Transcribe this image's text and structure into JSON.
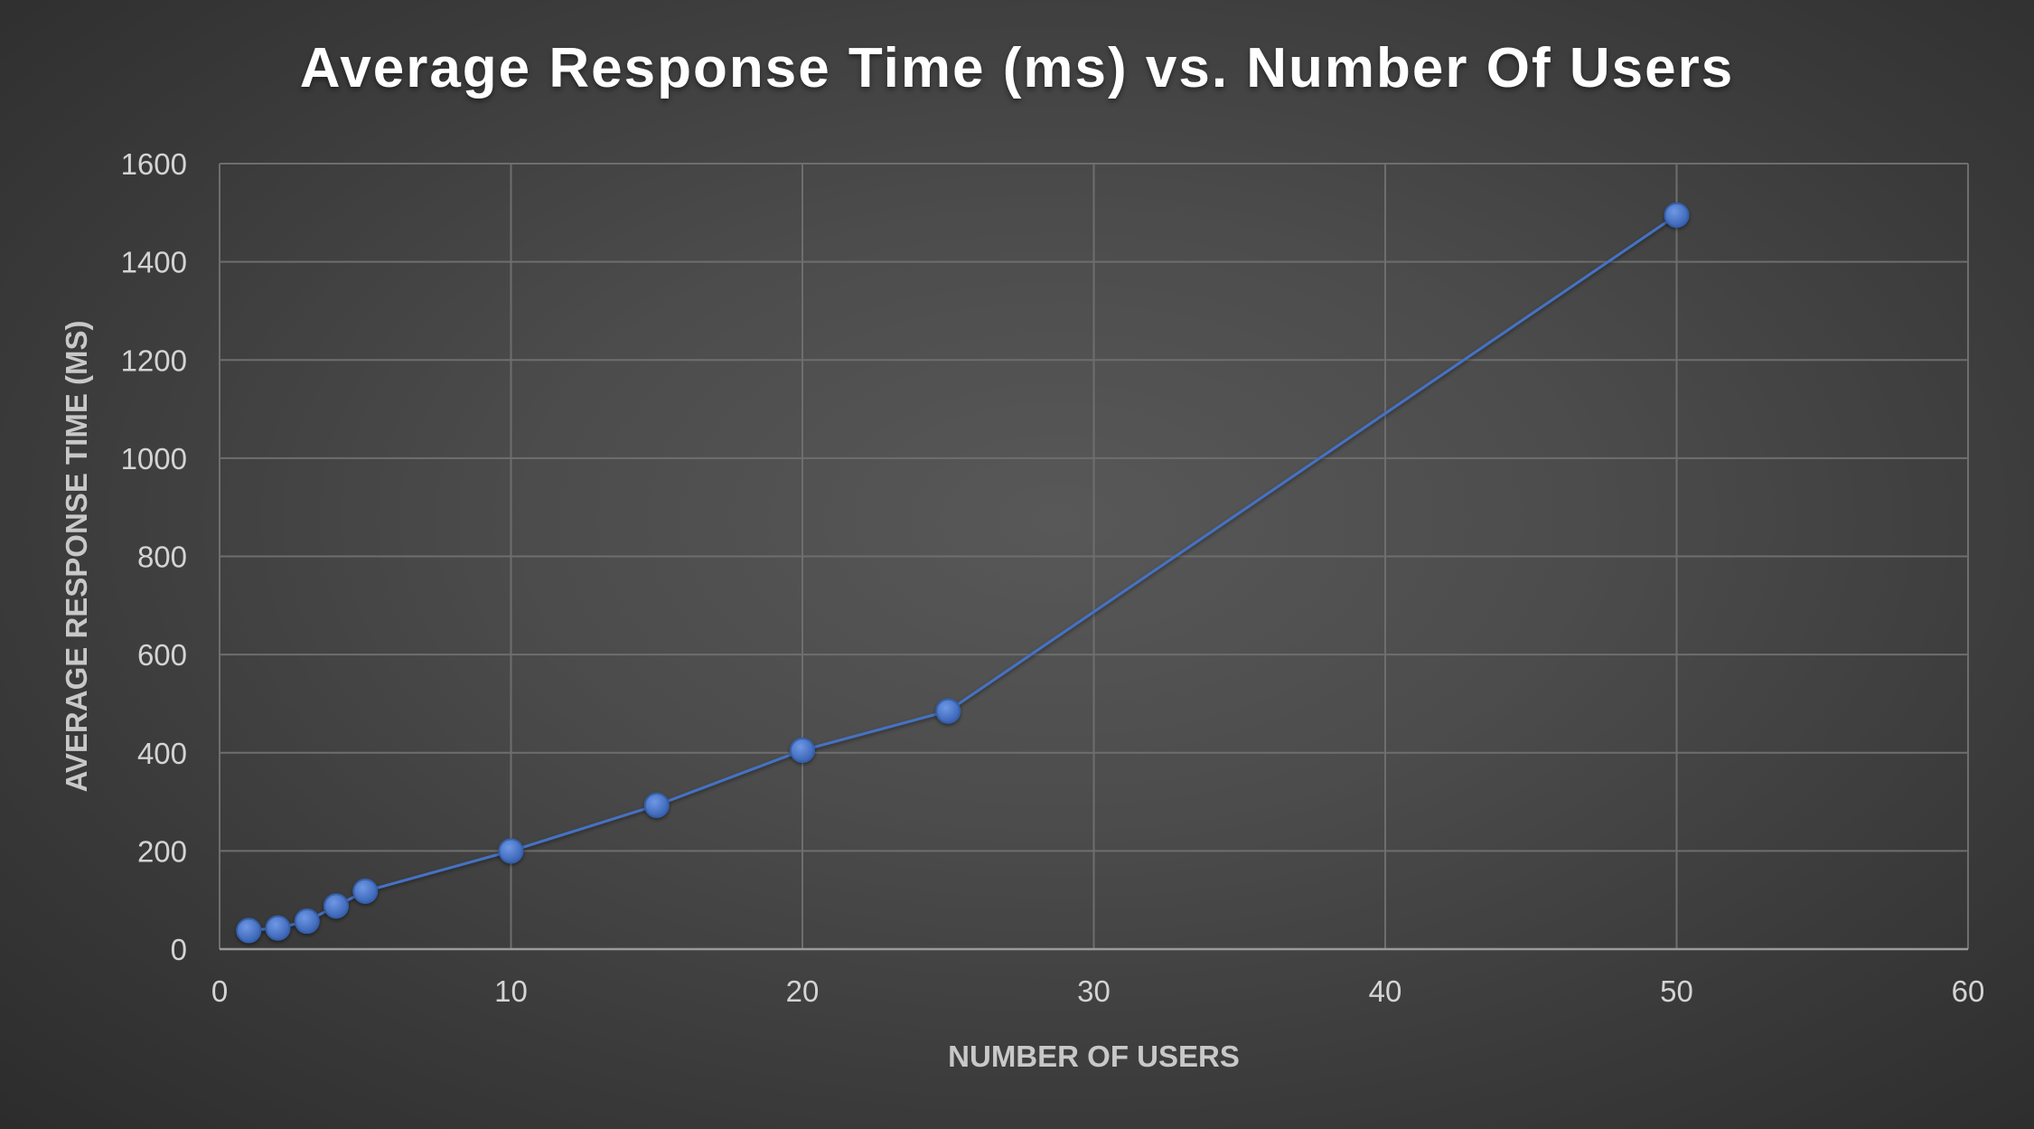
{
  "chart_data": {
    "type": "scatter",
    "title": "Average Response Time (ms) vs. Number Of Users",
    "xlabel": "NUMBER OF USERS",
    "ylabel": "AVERAGE RESPONSE TIME (MS)",
    "xlim": [
      0,
      60
    ],
    "ylim": [
      0,
      1600
    ],
    "xticks": [
      0,
      10,
      20,
      30,
      40,
      50,
      60
    ],
    "yticks": [
      0,
      200,
      400,
      600,
      800,
      1000,
      1200,
      1400,
      1600
    ],
    "grid": true,
    "legend": "none",
    "line_connected": true,
    "series": [
      {
        "color": "#4472c4",
        "x": [
          1,
          2,
          3,
          4,
          5,
          10,
          15,
          20,
          25,
          50
        ],
        "y": [
          38,
          43,
          57,
          88,
          118,
          200,
          293,
          405,
          485,
          1495
        ]
      }
    ]
  }
}
